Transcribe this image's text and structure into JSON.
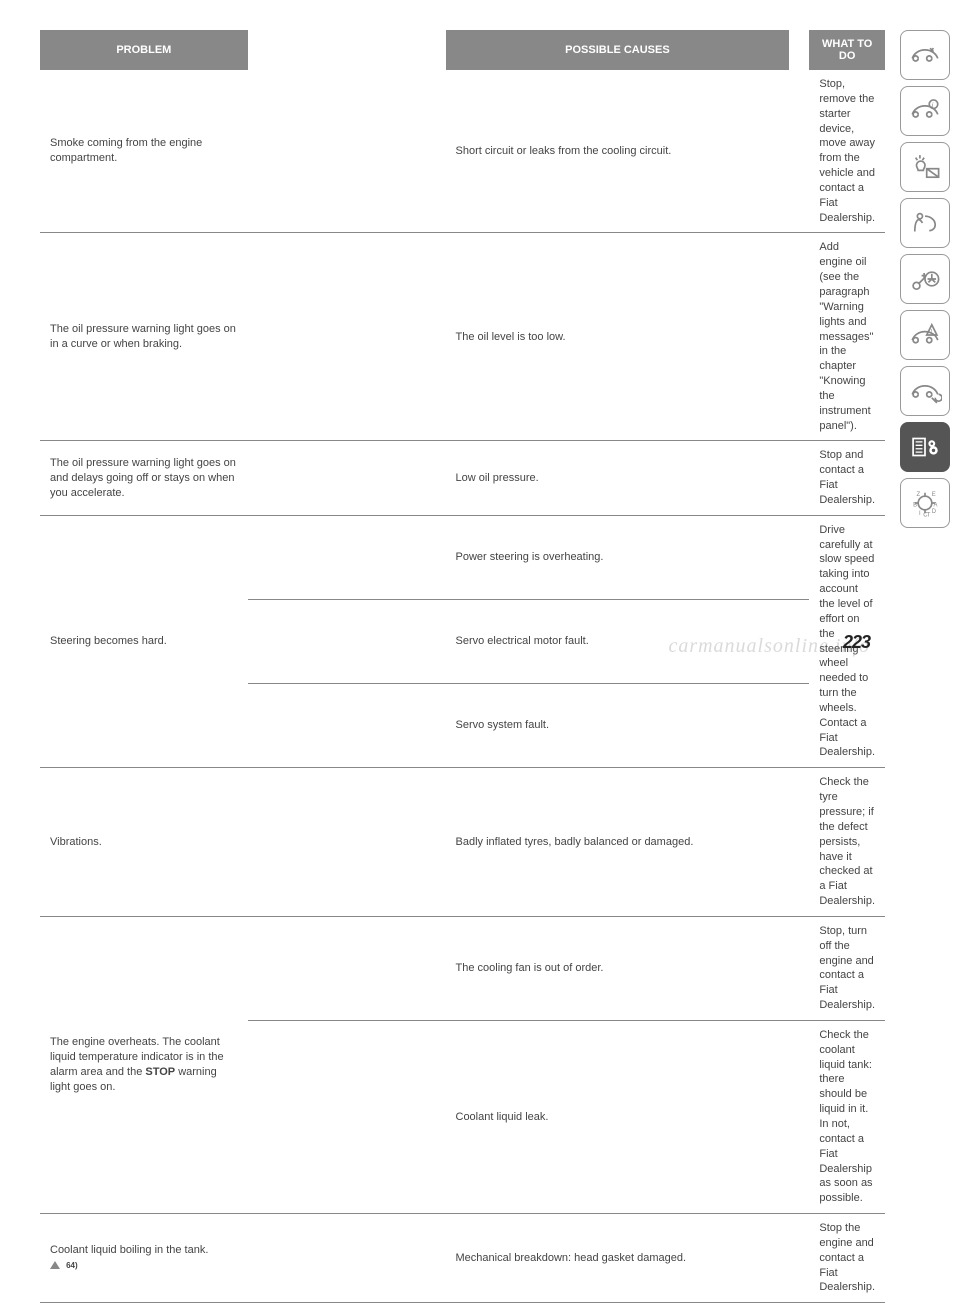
{
  "headers": {
    "col1": "PROBLEM",
    "col2": "POSSIBLE CAUSES",
    "col3": "WHAT TO DO"
  },
  "rows": [
    {
      "problem": "Smoke coming from the engine compartment.",
      "cause": "Short circuit or leaks from the cooling circuit.",
      "action": "Stop, remove the starter device, move away from the vehicle and contact a Fiat Dealership."
    },
    {
      "problem": "The oil pressure warning light goes on in a curve or when braking.",
      "cause": "The oil level is too low.",
      "action": "Add engine oil (see the paragraph \"Warning lights and messages\" in the chapter \"Knowing the instrument panel\")."
    },
    {
      "problem": "The oil pressure warning light goes on and delays going off or stays on when you accelerate.",
      "cause": "Low oil pressure.",
      "action": "Stop and contact a Fiat Dealership."
    },
    {
      "problem": "Steering becomes hard.",
      "causes": [
        "Power steering is overheating.",
        "Servo electrical motor fault.",
        "Servo system fault."
      ],
      "action": "Drive carefully at slow speed taking into account the level of effort on the steering wheel needed to turn the wheels. Contact a Fiat Dealership."
    },
    {
      "problem": "Vibrations.",
      "cause": "Badly inflated tyres, badly balanced or damaged.",
      "action": "Check the tyre pressure; if the defect persists, have it checked at a Fiat Dealership."
    },
    {
      "problem_html": "The engine overheats. The coolant liquid temperature indicator is in the alarm area and the <span class='strong'>STOP</span> warning light goes on.",
      "causes2": [
        {
          "cause": "The cooling fan is out of order.",
          "action": "Stop, turn off the engine and contact a Fiat Dealership."
        },
        {
          "cause": "Coolant liquid leak.",
          "action": "Check the coolant liquid tank: there should be liquid in it. In not, contact a Fiat Dealership as soon as possible."
        }
      ]
    },
    {
      "problem": "Coolant liquid boiling in the tank.",
      "footnote": "64)",
      "cause": "Mechanical breakdown: head gasket damaged.",
      "action": "Stop the engine and contact a Fiat Dealership."
    }
  ],
  "page_number": "223",
  "watermark": "carmanualsonline.info",
  "colors": {
    "header_bg": "#888888",
    "header_fg": "#ffffff",
    "text": "#444444",
    "border": "#888888",
    "active_tab": "#555555"
  }
}
